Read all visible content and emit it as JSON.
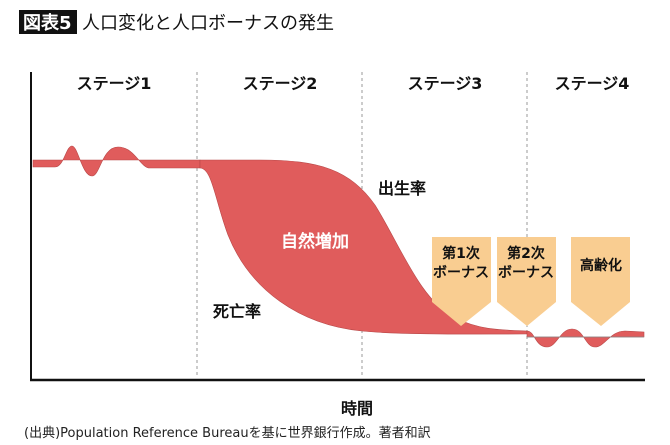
{
  "title": {
    "badge": "図表5",
    "text": "人口変化と人口ボーナスの発生"
  },
  "stages": [
    "ステージ1",
    "ステージ2",
    "ステージ3",
    "ステージ4"
  ],
  "labels": {
    "birth_rate": "出生率",
    "death_rate": "死亡率",
    "natural_increase": "自然増加"
  },
  "callouts": [
    {
      "line1": "第1次",
      "line2": "ボーナス"
    },
    {
      "line1": "第2次",
      "line2": "ボーナス"
    },
    {
      "line1": "高齢化",
      "line2": ""
    }
  ],
  "xlabel": "時間",
  "source": "(出典)Population Reference Bureauを基に世界銀行作成。著者和訳",
  "colors": {
    "fill": "#e05c5c",
    "callout": "#f9cd91",
    "badge": "#111111"
  }
}
